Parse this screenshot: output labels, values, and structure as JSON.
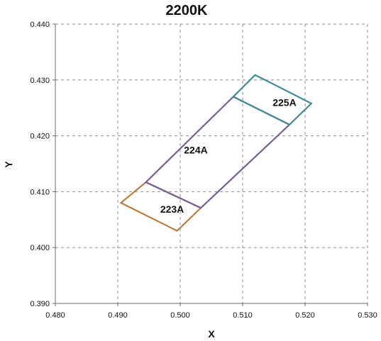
{
  "chart_data": {
    "type": "polygon",
    "title": "2200K",
    "xlabel": "X",
    "ylabel": "Y",
    "xlim": [
      0.48,
      0.53
    ],
    "ylim": [
      0.39,
      0.44
    ],
    "xticks": [
      "0.480",
      "0.490",
      "0.500",
      "0.510",
      "0.520",
      "0.530"
    ],
    "yticks": [
      "0.390",
      "0.400",
      "0.410",
      "0.420",
      "0.430",
      "0.440"
    ],
    "grid": true,
    "grid_style": "dashed",
    "regions": [
      {
        "name": "223A",
        "color": "#C07B3A",
        "points": [
          [
            0.4905,
            0.408
          ],
          [
            0.4945,
            0.4117
          ],
          [
            0.5033,
            0.4071
          ],
          [
            0.4995,
            0.403
          ]
        ],
        "label_pos": [
          0.4987,
          0.4067
        ]
      },
      {
        "name": "224A",
        "color": "#7A5C97",
        "points": [
          [
            0.4945,
            0.4117
          ],
          [
            0.5085,
            0.427
          ],
          [
            0.5175,
            0.422
          ],
          [
            0.5033,
            0.4071
          ]
        ],
        "label_pos": [
          0.5025,
          0.4173
        ]
      },
      {
        "name": "225A",
        "color": "#3E8C98",
        "points": [
          [
            0.5085,
            0.427
          ],
          [
            0.512,
            0.4309
          ],
          [
            0.521,
            0.4258
          ],
          [
            0.5175,
            0.422
          ]
        ],
        "label_pos": [
          0.5167,
          0.4258
        ]
      }
    ]
  }
}
